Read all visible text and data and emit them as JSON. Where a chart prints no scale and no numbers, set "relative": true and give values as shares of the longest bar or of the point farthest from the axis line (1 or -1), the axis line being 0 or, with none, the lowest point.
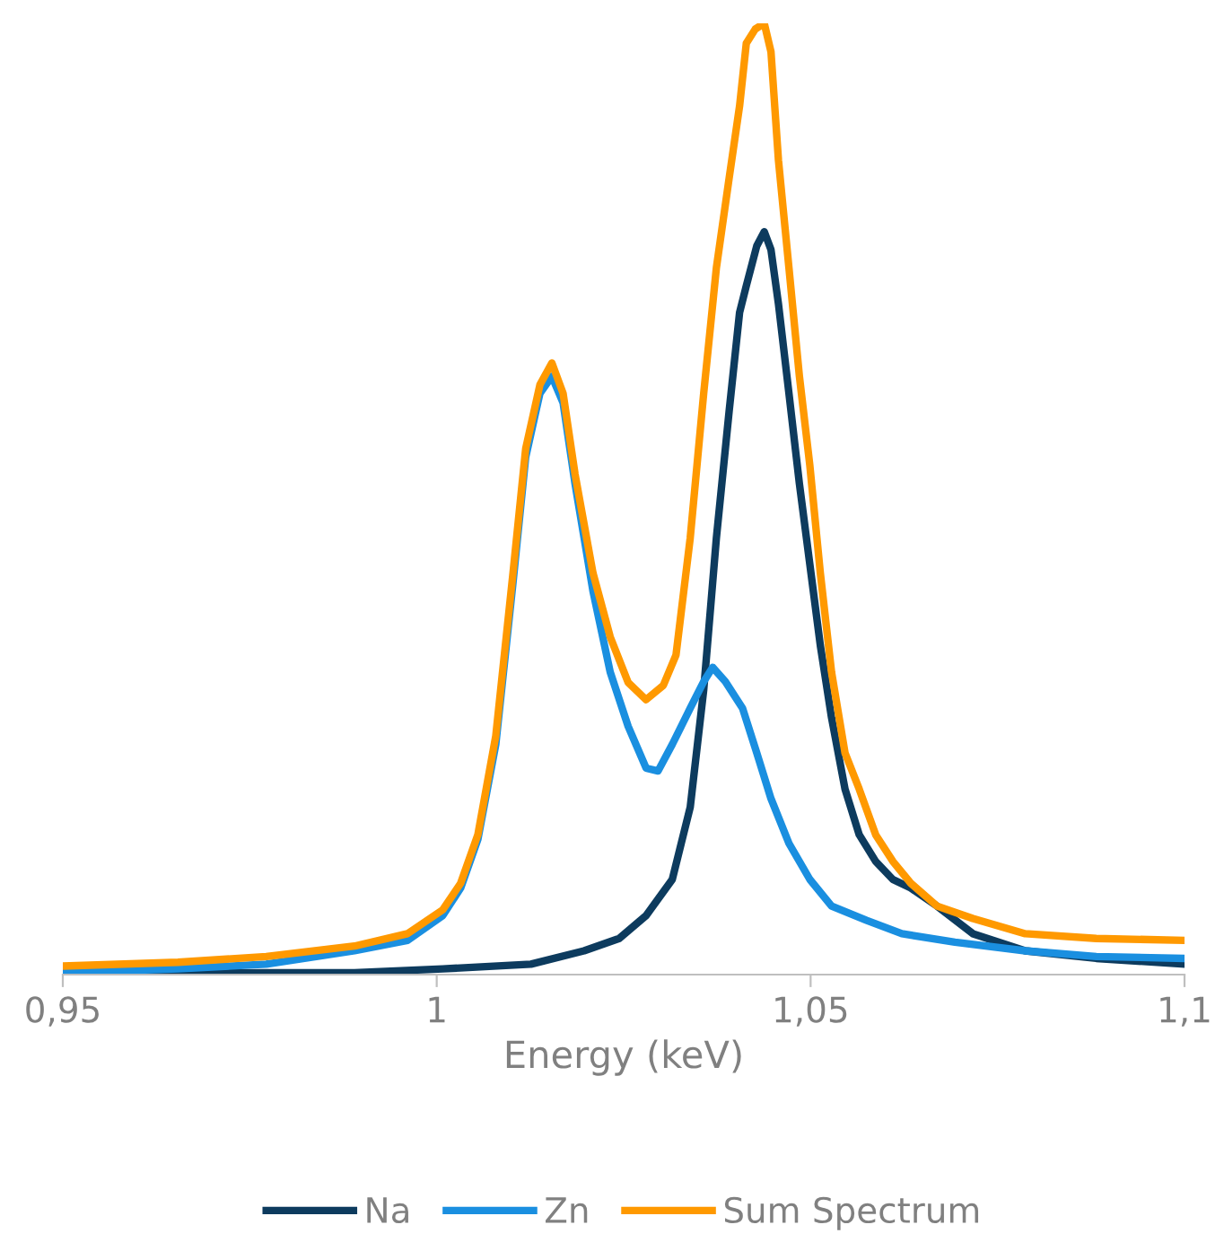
{
  "chart_data": {
    "type": "line",
    "relative": true,
    "xlabel": "Energy (keV)",
    "xlim": [
      0.95,
      1.1
    ],
    "xticks": [
      {
        "value": 0.95,
        "label": "0,95"
      },
      {
        "value": 1,
        "label": "1"
      },
      {
        "value": 1.05,
        "label": "1,05"
      },
      {
        "value": 1.1,
        "label": "1,1"
      }
    ],
    "grid": false,
    "legend": "bottom",
    "marker": "none",
    "line_style": "solid",
    "series": [
      {
        "name": "Na",
        "color": "#0d3b5e",
        "x": [
          0.95,
          0.9772,
          0.989,
          1.0008,
          1.0126,
          1.0197,
          1.0244,
          1.028,
          1.0315,
          1.0339,
          1.0357,
          1.0374,
          1.0391,
          1.0405,
          1.0414,
          1.0428,
          1.0438,
          1.0447,
          1.0457,
          1.0471,
          1.0485,
          1.0499,
          1.0513,
          1.0528,
          1.0546,
          1.0565,
          1.0587,
          1.061,
          1.0634,
          1.0669,
          1.0717,
          1.0787,
          1.0882,
          1.1
        ],
        "values": [
          0,
          0.002,
          0.002,
          0.006,
          0.011,
          0.025,
          0.038,
          0.062,
          0.1,
          0.176,
          0.299,
          0.459,
          0.592,
          0.696,
          0.724,
          0.766,
          0.781,
          0.762,
          0.705,
          0.611,
          0.516,
          0.431,
          0.346,
          0.27,
          0.195,
          0.147,
          0.119,
          0.1,
          0.091,
          0.072,
          0.043,
          0.025,
          0.017,
          0.011
        ]
      },
      {
        "name": "Zn",
        "color": "#1a8fe0",
        "x": [
          0.95,
          0.9654,
          0.9772,
          0.989,
          0.9961,
          1.0008,
          1.0032,
          1.0055,
          1.0079,
          1.0102,
          1.0119,
          1.0138,
          1.0154,
          1.0169,
          1.0185,
          1.0209,
          1.0232,
          1.0256,
          1.028,
          1.0296,
          1.0315,
          1.0339,
          1.0357,
          1.0369,
          1.0386,
          1.0409,
          1.0428,
          1.0447,
          1.0471,
          1.0499,
          1.0528,
          1.0575,
          1.0622,
          1.0693,
          1.0787,
          1.0882,
          1.1
        ],
        "values": [
          0.002,
          0.006,
          0.011,
          0.025,
          0.036,
          0.062,
          0.091,
          0.142,
          0.242,
          0.412,
          0.544,
          0.611,
          0.629,
          0.601,
          0.516,
          0.403,
          0.318,
          0.261,
          0.217,
          0.214,
          0.242,
          0.28,
          0.308,
          0.323,
          0.308,
          0.28,
          0.233,
          0.185,
          0.138,
          0.1,
          0.072,
          0.057,
          0.043,
          0.034,
          0.025,
          0.019,
          0.017
        ]
      },
      {
        "name": "Sum Spectrum",
        "color": "#ff9900",
        "x": [
          0.95,
          0.9654,
          0.9772,
          0.989,
          0.9961,
          1.0008,
          1.0032,
          1.0055,
          1.0079,
          1.0102,
          1.0119,
          1.0138,
          1.0154,
          1.0169,
          1.0185,
          1.0209,
          1.0232,
          1.0256,
          1.028,
          1.0303,
          1.032,
          1.0339,
          1.0357,
          1.0374,
          1.0391,
          1.0405,
          1.0414,
          1.0426,
          1.0438,
          1.0447,
          1.0457,
          1.0471,
          1.0485,
          1.0499,
          1.0513,
          1.0528,
          1.0546,
          1.0565,
          1.0587,
          1.061,
          1.0634,
          1.0669,
          1.0717,
          1.0787,
          1.0882,
          1.1
        ],
        "values": [
          0.009,
          0.013,
          0.019,
          0.03,
          0.043,
          0.068,
          0.096,
          0.147,
          0.251,
          0.422,
          0.553,
          0.62,
          0.643,
          0.611,
          0.526,
          0.422,
          0.355,
          0.307,
          0.289,
          0.304,
          0.336,
          0.459,
          0.611,
          0.743,
          0.837,
          0.913,
          0.979,
          0.994,
          1,
          0.97,
          0.856,
          0.743,
          0.629,
          0.535,
          0.422,
          0.318,
          0.233,
          0.195,
          0.147,
          0.119,
          0.096,
          0.072,
          0.059,
          0.043,
          0.038,
          0.036
        ]
      }
    ]
  }
}
